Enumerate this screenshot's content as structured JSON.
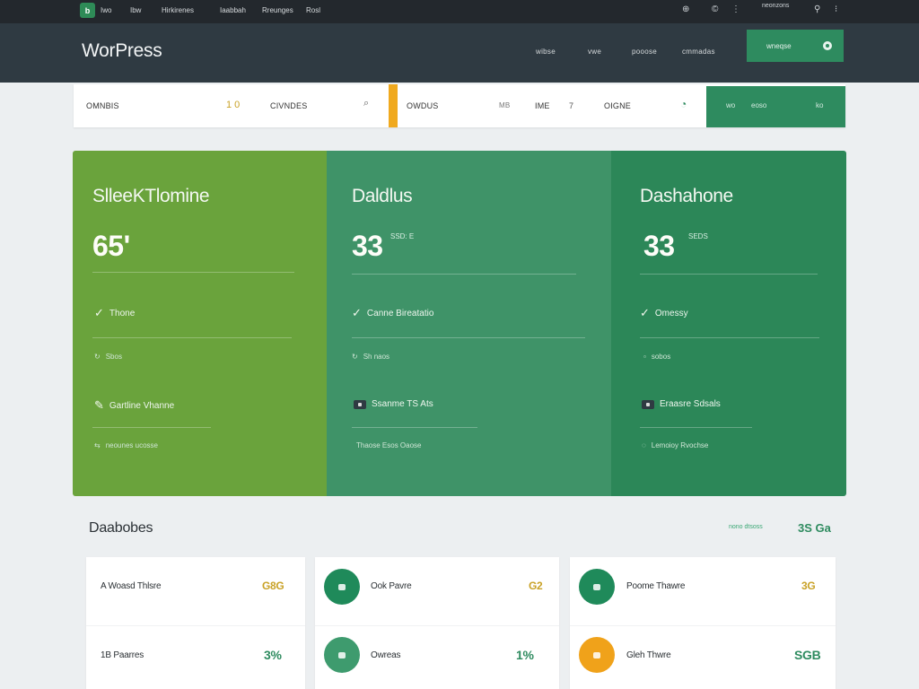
{
  "adminbar": {
    "logo": "b",
    "menu": [
      "Iwo",
      "Ibw",
      "Hirkirenes",
      "Iaabbah",
      "Rreunges",
      "Rosl"
    ],
    "right": [
      "⊕",
      "©",
      "⋮",
      "neonzons",
      "⚲",
      "⁝"
    ]
  },
  "header": {
    "brand": "WorPress",
    "nav": [
      "wibse",
      "vwe",
      "pooose",
      "cmmadas"
    ],
    "cta_label": "wneqse"
  },
  "strip": {
    "c1_label": "OMNBIS",
    "c1_num": "1 0",
    "c2_label": "CIVNDES",
    "c2_icon": "⌕",
    "c3_label": "OWDUS",
    "c3_num": "MB",
    "c4_label": "IME",
    "c4_num": "7",
    "c5_label": "OIGNE",
    "c5_icon": "◔",
    "green_a": "wo",
    "green_b": "eoso",
    "green_c": "ko"
  },
  "hero": {
    "p1": {
      "title": "SlleeKTlomine",
      "big": "65'",
      "row1": "Thone",
      "row2": "Sbos",
      "row3": "Gartline Vhanne",
      "row4": "neounes ucosse"
    },
    "p2": {
      "title": "Daldlus",
      "big": "33",
      "small": "SSD: E",
      "row1": "Canne Bireatatio",
      "row2": "Sh naos",
      "row3": "Ssanme TS Ats",
      "row4": "Thaose Esos Oaose"
    },
    "p3": {
      "title": "Dashahone",
      "big": "33",
      "small": "SEDS",
      "row1": "Omessy",
      "row2": "sobos",
      "row3": "Eraasre Sdsals",
      "row4": "Lemoioy Rvochse"
    }
  },
  "section": {
    "title": "Daabobes",
    "meta": "nono dtsoss",
    "value": "3S Ga"
  },
  "cards": [
    {
      "rows": [
        {
          "label": "A Woasd Thlsre",
          "value": "G8G"
        },
        {
          "label": "1B Paarres",
          "value": "3%"
        }
      ]
    },
    {
      "rows": [
        {
          "label": "Ook Pavre",
          "value": "G2"
        },
        {
          "label": "Owreas",
          "value": "1%"
        }
      ]
    },
    {
      "rows": [
        {
          "label": "Poome Thawre",
          "value": "3G"
        },
        {
          "label": "Gleh Thwre",
          "value": "SGB"
        }
      ]
    }
  ],
  "colors": {
    "admin_bg": "#23282d",
    "header_bg": "#2f3a42",
    "accent_green": "#2e8b5f",
    "lime_panel": "#6aa33c",
    "mid_panel": "#3f9368",
    "deep_panel": "#2c8758",
    "orange": "#f0a91e",
    "gold_text": "#c9a227"
  }
}
